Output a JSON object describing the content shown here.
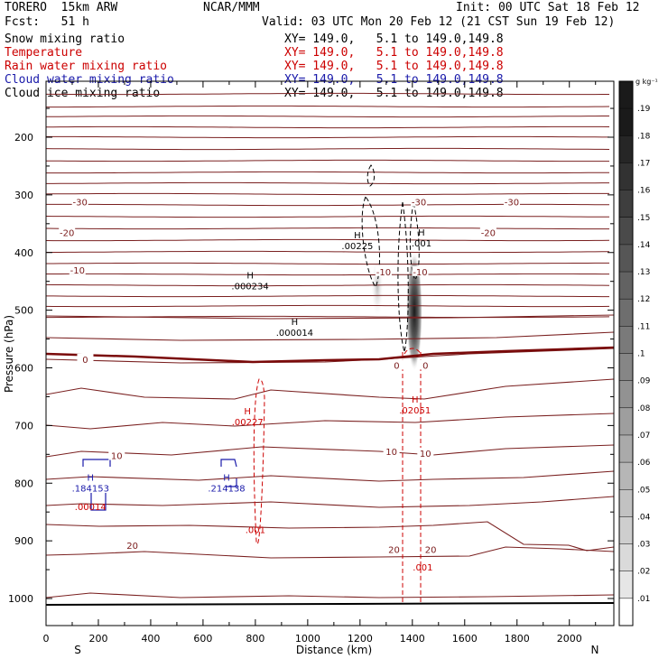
{
  "header": {
    "model": "TORERO  15km ARW",
    "org": "NCAR/MMM",
    "init": "Init: 00 UTC Sat 18 Feb 12",
    "fcst": "Fcst:   51 h",
    "valid": "Valid: 03 UTC Mon 20 Feb 12 (21 CST Sun 19 Feb 12)"
  },
  "fields": [
    {
      "name": "Snow mixing ratio",
      "xy": "XY= 149.0,   5.1 to 149.0,149.8",
      "color": "#000000"
    },
    {
      "name": "Temperature",
      "xy": "XY= 149.0,   5.1 to 149.0,149.8",
      "color": "#cc0000"
    },
    {
      "name": "Rain water mixing ratio",
      "xy": "XY= 149.0,   5.1 to 149.0,149.8",
      "color": "#cc0000"
    },
    {
      "name": "Cloud water mixing ratio",
      "xy": "XY= 149.0,   5.1 to 149.0,149.8",
      "color": "#1a1aaa"
    },
    {
      "name": "Cloud ice mixing ratio",
      "xy": "XY= 149.0,   5.1 to 149.0,149.8",
      "color": "#000000"
    }
  ],
  "chart_data": {
    "type": "cross-section",
    "xlabel": "Distance (km)",
    "ylabel": "Pressure (hPa)",
    "x_ticks": [
      "0",
      "200",
      "400",
      "600",
      "800",
      "1000",
      "1200",
      "1400",
      "1600",
      "1800",
      "2000"
    ],
    "y_ticks": [
      "200",
      "300",
      "400",
      "500",
      "600",
      "700",
      "800",
      "900",
      "1000"
    ],
    "xlim": [
      0,
      2170
    ],
    "ylim_pressure": [
      1050,
      110
    ],
    "x_endpoints": {
      "left": "S",
      "right": "N"
    },
    "colorbar": {
      "unit": "g kg⁻¹",
      "ticks": [
        ".01",
        ".02",
        ".03",
        ".04",
        ".05",
        ".06",
        ".07",
        ".08",
        ".09",
        ".1",
        ".11",
        ".12",
        ".13",
        ".14",
        ".15",
        ".16",
        ".17",
        ".18",
        ".19"
      ],
      "ramp_colors": [
        "#ffffff",
        "#e6e6e6",
        "#dadada",
        "#cecece",
        "#c2c2c2",
        "#b6b6b6",
        "#aaaaaa",
        "#9e9e9e",
        "#929292",
        "#868686",
        "#7a7a7a",
        "#6e6e6e",
        "#626262",
        "#565656",
        "#4a4a4a",
        "#3e3e3e",
        "#323232",
        "#262626",
        "#1a1a1a"
      ]
    },
    "temperature_labels": [
      {
        "text": "-30",
        "x": 130,
        "p": 312
      },
      {
        "text": "-30",
        "x": 1425,
        "p": 312
      },
      {
        "text": "-30",
        "x": 1780,
        "p": 312
      },
      {
        "text": "-20",
        "x": 80,
        "p": 365
      },
      {
        "text": "-20",
        "x": 1690,
        "p": 365
      },
      {
        "text": "-10",
        "x": 120,
        "p": 430
      },
      {
        "text": "-10",
        "x": 1290,
        "p": 433
      },
      {
        "text": "-10",
        "x": 1430,
        "p": 433
      },
      {
        "text": "0",
        "x": 150,
        "p": 585
      },
      {
        "text": "0",
        "x": 1340,
        "p": 595
      },
      {
        "text": "0",
        "x": 1450,
        "p": 595
      },
      {
        "text": "10",
        "x": 270,
        "p": 752
      },
      {
        "text": "10",
        "x": 1320,
        "p": 745
      },
      {
        "text": "10",
        "x": 1450,
        "p": 748
      },
      {
        "text": "20",
        "x": 330,
        "p": 908
      },
      {
        "text": "20",
        "x": 1330,
        "p": 915
      },
      {
        "text": "20",
        "x": 1470,
        "p": 915
      }
    ],
    "maxima": [
      {
        "label": "H",
        "value": ".000234",
        "x": 780,
        "p": 450,
        "field": "snow"
      },
      {
        "label": "H",
        "value": ".000014",
        "x": 950,
        "p": 530,
        "field": "snow"
      },
      {
        "label": "H",
        "value": ".00225",
        "x": 1190,
        "p": 380,
        "field": "snow"
      },
      {
        "label": "H",
        "value": ".001",
        "x": 1435,
        "p": 375,
        "field": "ice"
      },
      {
        "label": "H",
        "value": ".00227",
        "x": 770,
        "p": 685,
        "field": "rain"
      },
      {
        "label": "H",
        "value": ".02051",
        "x": 1410,
        "p": 665,
        "field": "rain"
      },
      {
        "label": "H",
        "value": ".184153",
        "x": 170,
        "p": 800,
        "field": "cloud"
      },
      {
        "label": "H",
        "value": ".214138",
        "x": 690,
        "p": 800,
        "field": "cloud"
      }
    ],
    "other_labels": [
      {
        "text": ".00014",
        "x": 170,
        "p": 840,
        "field": "rain"
      },
      {
        "text": ".001",
        "x": 800,
        "p": 880,
        "field": "rain"
      },
      {
        "text": ".001",
        "x": 1440,
        "p": 945,
        "field": "rain"
      }
    ]
  }
}
